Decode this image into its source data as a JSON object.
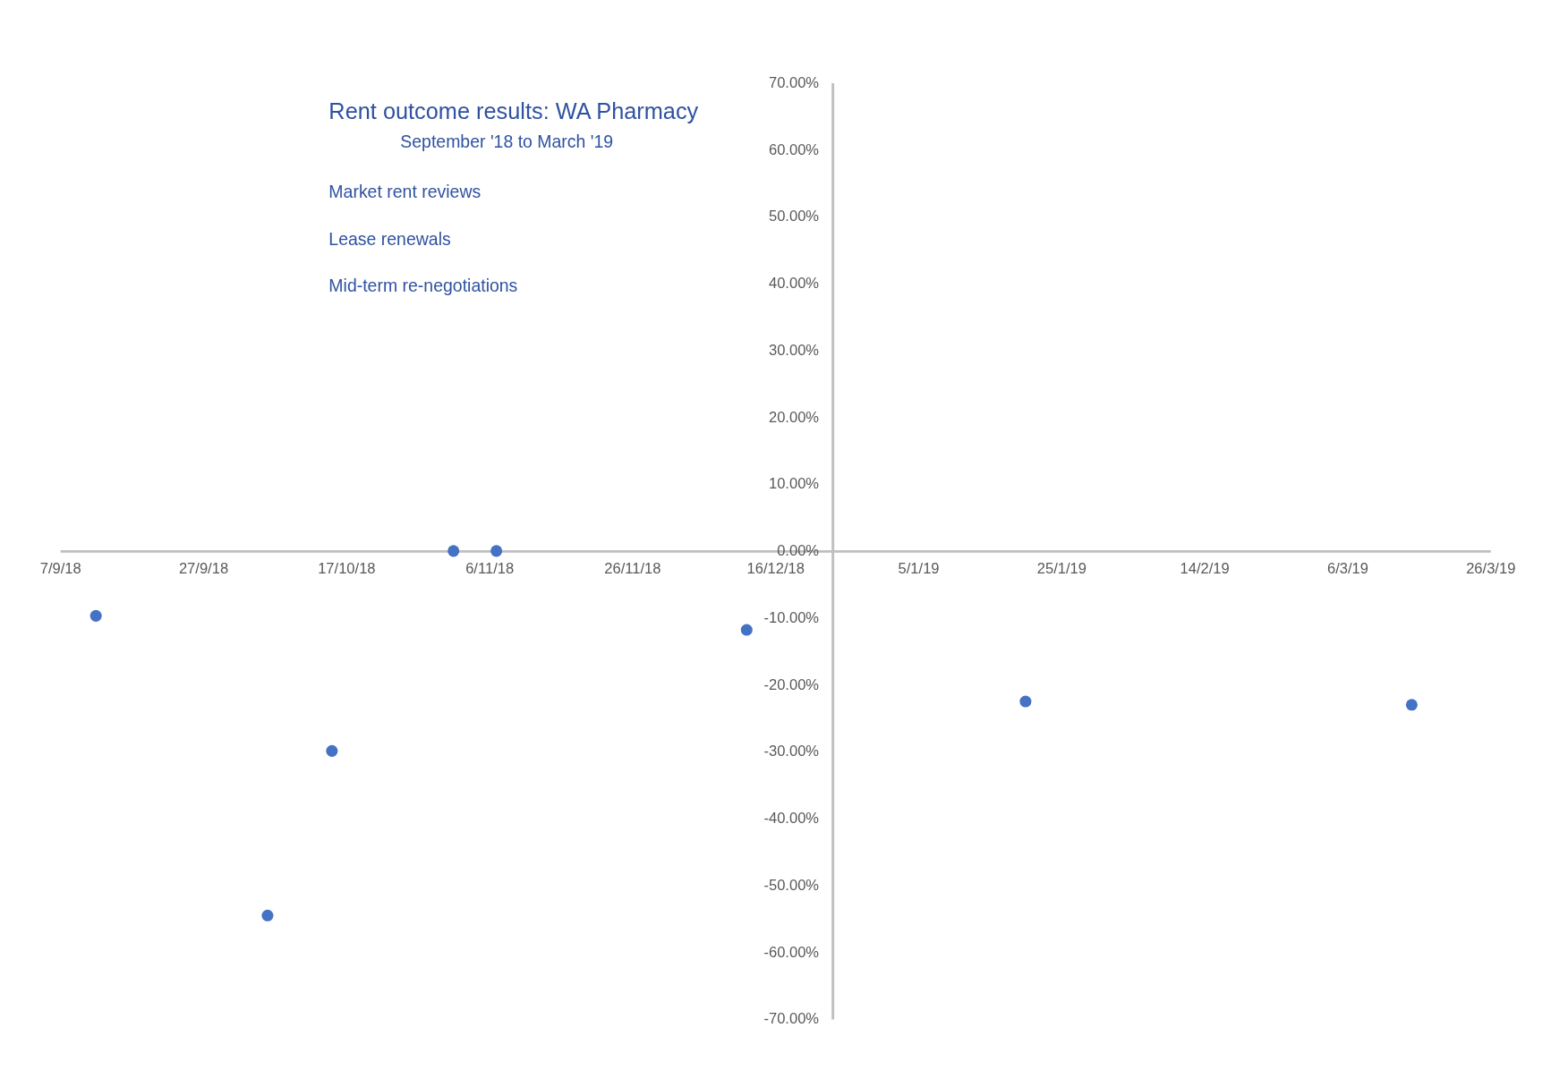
{
  "chart_data": {
    "type": "scatter",
    "title": "Rent outcome results:  WA Pharmacy",
    "subtitle": "September '18 to March '19",
    "annotations": [
      "Market rent reviews",
      "Lease renewals",
      "Mid-term re-negotiations"
    ],
    "x": [
      "2018-09-12",
      "2018-10-06",
      "2018-10-15",
      "2018-11-01",
      "2018-11-07",
      "2018-12-12",
      "2019-01-20",
      "2019-03-15"
    ],
    "series": [
      {
        "color": "#4472c4",
        "values": [
          -9.7,
          -54.5,
          -29.9,
          0,
          0,
          -11.8,
          -22.5,
          -23.0
        ]
      }
    ],
    "marker": "circle",
    "grid": false,
    "legend": false,
    "xlim": [
      "2018-09-07",
      "2019-03-26"
    ],
    "xticks": [
      {
        "value": "2018-09-07",
        "label": "7/9/18"
      },
      {
        "value": "2018-09-27",
        "label": "27/9/18"
      },
      {
        "value": "2018-10-17",
        "label": "17/10/18"
      },
      {
        "value": "2018-11-06",
        "label": "6/11/18"
      },
      {
        "value": "2018-11-26",
        "label": "26/11/18"
      },
      {
        "value": "2018-12-16",
        "label": "16/12/18"
      },
      {
        "value": "2019-01-05",
        "label": "5/1/19"
      },
      {
        "value": "2019-01-25",
        "label": "25/1/19"
      },
      {
        "value": "2019-02-14",
        "label": "14/2/19"
      },
      {
        "value": "2019-03-06",
        "label": "6/3/19"
      },
      {
        "value": "2019-03-26",
        "label": "26/3/19"
      }
    ],
    "ylim": [
      -70,
      70
    ],
    "yticks": [
      {
        "value": 70,
        "label": "70.00%"
      },
      {
        "value": 60,
        "label": "60.00%"
      },
      {
        "value": 50,
        "label": "50.00%"
      },
      {
        "value": 40,
        "label": "40.00%"
      },
      {
        "value": 30,
        "label": "30.00%"
      },
      {
        "value": 20,
        "label": "20.00%"
      },
      {
        "value": 10,
        "label": "10.00%"
      },
      {
        "value": 0,
        "label": "0.00%"
      },
      {
        "value": -10,
        "label": "-10.00%"
      },
      {
        "value": -20,
        "label": "-20.00%"
      },
      {
        "value": -30,
        "label": "-30.00%"
      },
      {
        "value": -40,
        "label": "-40.00%"
      },
      {
        "value": -50,
        "label": "-50.00%"
      },
      {
        "value": -60,
        "label": "-60.00%"
      },
      {
        "value": -70,
        "label": "-70.00%"
      }
    ]
  }
}
